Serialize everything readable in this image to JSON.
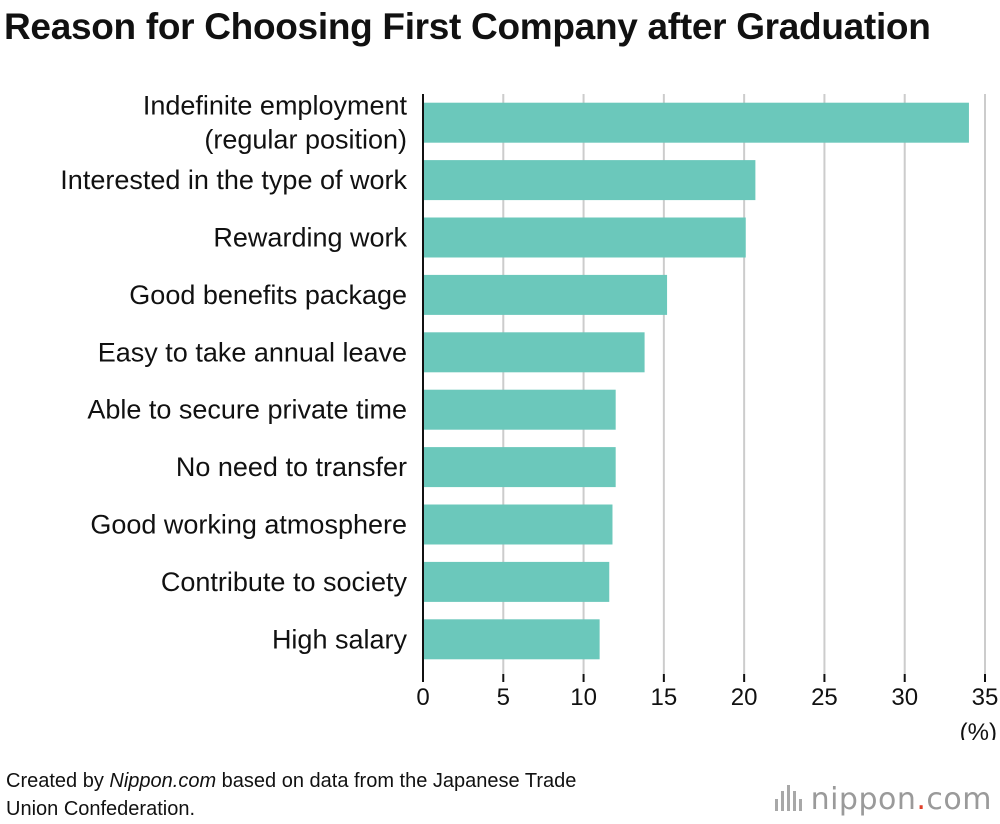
{
  "title": "Reason for Choosing First Company after Graduation",
  "footer": {
    "prefix": "Created by ",
    "source": "Nippon.com",
    "suffix_line1": " based on data from the Japanese Trade",
    "line2": "Union Confederation."
  },
  "logo": {
    "name": "nippon",
    "dot": ".",
    "tld": "com"
  },
  "colors": {
    "bar": "#6bc8bb",
    "grid": "#cccccc",
    "axis": "#111111"
  },
  "chart_data": {
    "type": "bar",
    "orientation": "horizontal",
    "title": "Reason for Choosing First Company after Graduation",
    "categories": [
      [
        "Indefinite employment",
        "(regular position)"
      ],
      [
        "Interested in the type of work"
      ],
      [
        "Rewarding work"
      ],
      [
        "Good benefits package"
      ],
      [
        "Easy to take annual leave"
      ],
      [
        "Able to secure private time"
      ],
      [
        "No need to transfer"
      ],
      [
        "Good working atmosphere"
      ],
      [
        "Contribute to society"
      ],
      [
        "High salary"
      ]
    ],
    "values": [
      34.0,
      20.7,
      20.1,
      15.2,
      13.8,
      12.0,
      12.0,
      11.8,
      11.6,
      11.0
    ],
    "xlim": [
      0,
      35
    ],
    "xticks": [
      0,
      5,
      10,
      15,
      20,
      25,
      30,
      35
    ],
    "unit_label": "(%)",
    "grid": true,
    "legend": "none"
  }
}
